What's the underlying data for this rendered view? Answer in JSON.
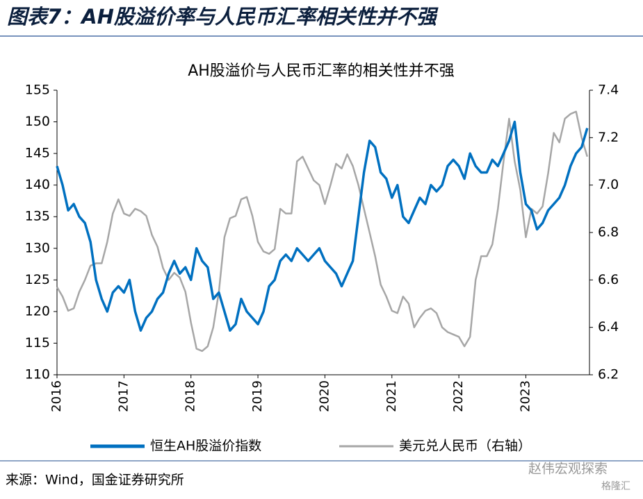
{
  "header": {
    "title": "图表7：AH股溢价率与人民币汇率相关性并不强"
  },
  "footer": {
    "source": "来源：Wind，国金证券研究所",
    "watermark": "赵伟宏观探索",
    "logo": "格隆汇"
  },
  "chart_data": {
    "type": "line",
    "title": "AH股溢价与人民币汇率的相关性并不强",
    "x": [
      2016,
      2016.083,
      2016.167,
      2016.25,
      2016.333,
      2016.417,
      2016.5,
      2016.583,
      2016.667,
      2016.75,
      2016.833,
      2016.917,
      2017,
      2017.083,
      2017.167,
      2017.25,
      2017.333,
      2017.417,
      2017.5,
      2017.583,
      2017.667,
      2017.75,
      2017.833,
      2017.917,
      2018,
      2018.083,
      2018.167,
      2018.25,
      2018.333,
      2018.417,
      2018.5,
      2018.583,
      2018.667,
      2018.75,
      2018.833,
      2018.917,
      2019,
      2019.083,
      2019.167,
      2019.25,
      2019.333,
      2019.417,
      2019.5,
      2019.583,
      2019.667,
      2019.75,
      2019.833,
      2019.917,
      2020,
      2020.083,
      2020.167,
      2020.25,
      2020.333,
      2020.417,
      2020.5,
      2020.583,
      2020.667,
      2020.75,
      2020.833,
      2020.917,
      2021,
      2021.083,
      2021.167,
      2021.25,
      2021.333,
      2021.417,
      2021.5,
      2021.583,
      2021.667,
      2021.75,
      2021.833,
      2021.917,
      2022,
      2022.083,
      2022.167,
      2022.25,
      2022.333,
      2022.417,
      2022.5,
      2022.583,
      2022.667,
      2022.75,
      2022.833,
      2022.917,
      2023,
      2023.083,
      2023.167,
      2023.25,
      2023.333,
      2023.417,
      2023.5,
      2023.583,
      2023.667,
      2023.75,
      2023.833,
      2023.917
    ],
    "series": [
      {
        "name": "恒生AH股溢价指数",
        "color": "#0070c0",
        "values": [
          143,
          140,
          136,
          137,
          135,
          134,
          131,
          125,
          122,
          120,
          123,
          124,
          123,
          125,
          120,
          117,
          119,
          120,
          122,
          123,
          126,
          128,
          126,
          127,
          125,
          130,
          128,
          127,
          122,
          123,
          120,
          117,
          118,
          122,
          120,
          119,
          118,
          120,
          124,
          125,
          128,
          129,
          128,
          130,
          129,
          128,
          129,
          130,
          128,
          127,
          126,
          124,
          126,
          128,
          135,
          142,
          147,
          146,
          142,
          141,
          138,
          140,
          135,
          134,
          136,
          138,
          137,
          140,
          139,
          140,
          143,
          144,
          143,
          141,
          145,
          143,
          142,
          142,
          144,
          143,
          145,
          147,
          150,
          142,
          137,
          136,
          133,
          134,
          136,
          137,
          138,
          140,
          143,
          145,
          146,
          149
        ]
      },
      {
        "name": "美元兑人民币（右轴）",
        "color": "#a6a6a6",
        "axis": "y2",
        "values": [
          6.57,
          6.53,
          6.47,
          6.48,
          6.55,
          6.6,
          6.66,
          6.67,
          6.67,
          6.76,
          6.88,
          6.94,
          6.88,
          6.87,
          6.9,
          6.89,
          6.87,
          6.79,
          6.74,
          6.65,
          6.6,
          6.63,
          6.61,
          6.55,
          6.42,
          6.31,
          6.3,
          6.32,
          6.4,
          6.55,
          6.78,
          6.86,
          6.87,
          6.94,
          6.95,
          6.87,
          6.76,
          6.72,
          6.71,
          6.73,
          6.9,
          6.88,
          6.88,
          7.1,
          7.12,
          7.07,
          7.02,
          7,
          6.92,
          7,
          7.09,
          7.07,
          7.13,
          7.08,
          7,
          6.9,
          6.8,
          6.7,
          6.58,
          6.53,
          6.47,
          6.46,
          6.53,
          6.5,
          6.4,
          6.44,
          6.47,
          6.48,
          6.46,
          6.4,
          6.38,
          6.37,
          6.36,
          6.32,
          6.36,
          6.6,
          6.7,
          6.7,
          6.75,
          6.9,
          7.1,
          7.28,
          7.1,
          6.98,
          6.78,
          6.9,
          6.88,
          6.91,
          7.05,
          7.22,
          7.18,
          7.28,
          7.3,
          7.31,
          7.2,
          7.12
        ]
      }
    ],
    "xlim": [
      2016,
      2023.95
    ],
    "xticks": [
      2016,
      2017,
      2018,
      2019,
      2020,
      2021,
      2022,
      2023
    ],
    "ylim": [
      110,
      155
    ],
    "yticks": [
      110,
      115,
      120,
      125,
      130,
      135,
      140,
      145,
      150,
      155
    ],
    "y2lim": [
      6.2,
      7.4
    ],
    "y2ticks": [
      6.2,
      6.4,
      6.6,
      6.8,
      {
        "value": 7,
        "label": "7.0"
      },
      7.2,
      7.4
    ],
    "legend": "bottom"
  }
}
